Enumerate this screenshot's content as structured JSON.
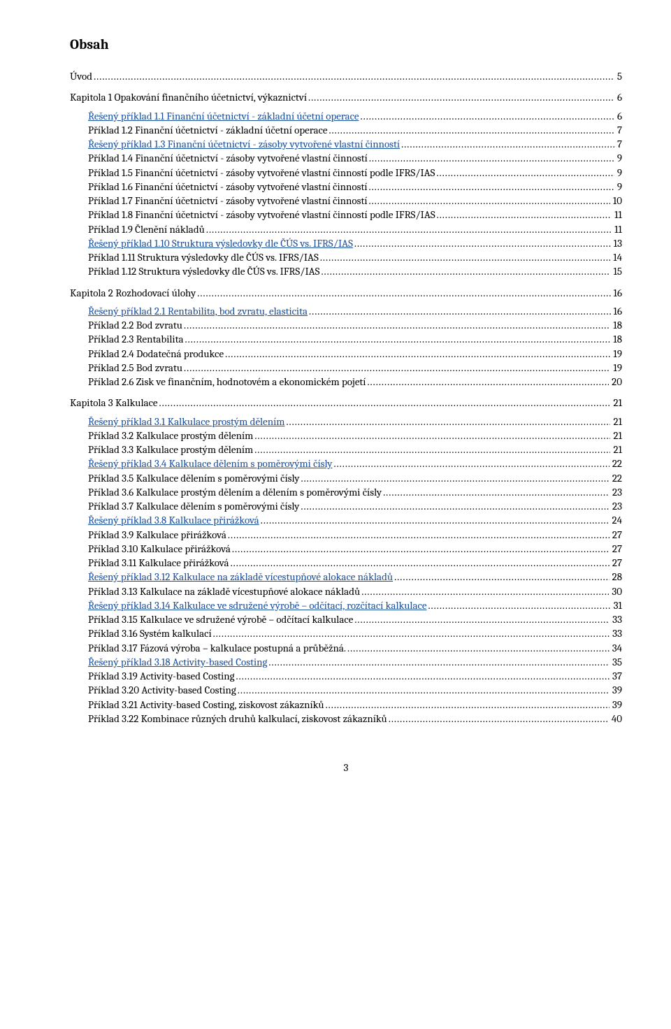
{
  "title": "Obsah",
  "pagefoot": "3",
  "dots_color": "#000000",
  "link_color": "#1a4f9c",
  "entries": [
    {
      "label": "Úvod",
      "page": "5",
      "level": 0,
      "link": false
    },
    {
      "label": "Kapitola 1    Opakování finančního účetnictví, výkaznictví",
      "page": "6",
      "level": 0,
      "link": false
    },
    {
      "label": "Řešený příklad 1.1 Finanční účetnictví - základní účetní operace",
      "page": "6",
      "level": 1,
      "link": true
    },
    {
      "label": "Příklad 1.2 Finanční účetnictví - základní účetní operace",
      "page": "7",
      "level": 1,
      "link": false
    },
    {
      "label": "Řešený příklad 1.3 Finanční účetnictví - zásoby vytvořené vlastní činností",
      "page": "7",
      "level": 1,
      "link": true
    },
    {
      "label": "Příklad 1.4 Finanční účetnictví - zásoby vytvořené vlastní činností",
      "page": "9",
      "level": 1,
      "link": false
    },
    {
      "label": "Příklad 1.5 Finanční účetnictví - zásoby vytvořené vlastní činností podle IFRS/IAS",
      "page": "9",
      "level": 1,
      "link": false
    },
    {
      "label": "Příklad 1.6 Finanční účetnictví - zásoby vytvořené vlastní činností",
      "page": "9",
      "level": 1,
      "link": false
    },
    {
      "label": "Příklad 1.7 Finanční účetnictví - zásoby vytvořené vlastní činností",
      "page": "10",
      "level": 1,
      "link": false
    },
    {
      "label": "Příklad 1.8 Finanční účetnictví - zásoby vytvořené vlastní činností podle IFRS/IAS",
      "page": "11",
      "level": 1,
      "link": false
    },
    {
      "label": "Příklad 1.9 Členění nákladů",
      "page": "11",
      "level": 1,
      "link": false
    },
    {
      "label": "Řešený příklad 1.10 Struktura výsledovky dle ČÚS vs. IFRS/IAS",
      "page": "13",
      "level": 1,
      "link": true
    },
    {
      "label": "Příklad 1.11 Struktura výsledovky dle ČÚS vs. IFRS/IAS",
      "page": "14",
      "level": 1,
      "link": false
    },
    {
      "label": "Příklad 1.12 Struktura výsledovky dle ČÚS vs. IFRS/IAS",
      "page": "15",
      "level": 1,
      "link": false
    },
    {
      "label": "Kapitola 2    Rozhodovací úlohy",
      "page": "16",
      "level": 0,
      "link": false
    },
    {
      "label": "Řešený příklad 2.1 Rentabilita, bod zvratu, elasticita",
      "page": "16",
      "level": 1,
      "link": true
    },
    {
      "label": "Příklad 2.2 Bod zvratu",
      "page": "18",
      "level": 1,
      "link": false
    },
    {
      "label": "Příklad 2.3 Rentabilita",
      "page": "18",
      "level": 1,
      "link": false
    },
    {
      "label": "Příklad 2.4 Dodatečná produkce",
      "page": "19",
      "level": 1,
      "link": false
    },
    {
      "label": "Příklad 2.5 Bod zvratu",
      "page": "19",
      "level": 1,
      "link": false
    },
    {
      "label": "Příklad 2.6 Zisk ve finančním, hodnotovém a ekonomickém pojetí",
      "page": "20",
      "level": 1,
      "link": false
    },
    {
      "label": "Kapitola 3    Kalkulace",
      "page": "21",
      "level": 0,
      "link": false
    },
    {
      "label": "Řešený příklad 3.1 Kalkulace prostým dělením",
      "page": "21",
      "level": 1,
      "link": true
    },
    {
      "label": "Příklad 3.2 Kalkulace prostým dělením",
      "page": "21",
      "level": 1,
      "link": false
    },
    {
      "label": "Příklad 3.3 Kalkulace prostým dělením",
      "page": "21",
      "level": 1,
      "link": false
    },
    {
      "label": "Řešený příklad 3.4 Kalkulace dělením s poměrovými čísly",
      "page": "22",
      "level": 1,
      "link": true
    },
    {
      "label": "Příklad 3.5 Kalkulace dělením s poměrovými čísly",
      "page": "22",
      "level": 1,
      "link": false
    },
    {
      "label": "Příklad 3.6 Kalkulace prostým dělením a dělením s poměrovými čísly",
      "page": "23",
      "level": 1,
      "link": false
    },
    {
      "label": "Příklad 3.7 Kalkulace dělením s poměrovými čísly",
      "page": "23",
      "level": 1,
      "link": false
    },
    {
      "label": "Řešený příklad 3.8 Kalkulace přirážková",
      "page": "24",
      "level": 1,
      "link": true
    },
    {
      "label": "Příklad 3.9 Kalkulace přirážková",
      "page": "27",
      "level": 1,
      "link": false
    },
    {
      "label": "Příklad 3.10 Kalkulace přirážková",
      "page": "27",
      "level": 1,
      "link": false
    },
    {
      "label": "Příklad 3.11 Kalkulace přirážková",
      "page": "27",
      "level": 1,
      "link": false
    },
    {
      "label": "Řešený příklad 3.12 Kalkulace na základě vícestupňové alokace nákladů",
      "page": "28",
      "level": 1,
      "link": true
    },
    {
      "label": "Příklad 3.13 Kalkulace na základě vícestupňové alokace nákladů",
      "page": "30",
      "level": 1,
      "link": false
    },
    {
      "label": "Řešený příklad 3.14 Kalkulace ve sdružené výrobě – odčítací, rozčítací kalkulace",
      "page": "31",
      "level": 1,
      "link": true
    },
    {
      "label": "Příklad 3.15 Kalkulace ve sdružené výrobě – odčítací kalkulace",
      "page": "33",
      "level": 1,
      "link": false
    },
    {
      "label": "Příklad 3.16 Systém kalkulací",
      "page": "33",
      "level": 1,
      "link": false
    },
    {
      "label": "Příklad 3.17 Fázová výroba – kalkulace postupná a průběžná.",
      "page": "34",
      "level": 1,
      "link": false
    },
    {
      "label": "Řešený příklad 3.18 Activity-based Costing",
      "page": "35",
      "level": 1,
      "link": true
    },
    {
      "label": "Příklad 3.19 Activity-based Costing",
      "page": "37",
      "level": 1,
      "link": false
    },
    {
      "label": "Příklad 3.20 Activity-based Costing",
      "page": "39",
      "level": 1,
      "link": false
    },
    {
      "label": "Příklad 3.21 Activity-based Costing, ziskovost zákazníků",
      "page": "39",
      "level": 1,
      "link": false
    },
    {
      "label": "Příklad 3.22 Kombinace různých druhů kalkulací, ziskovost zákazníků",
      "page": "40",
      "level": 1,
      "link": false
    }
  ]
}
